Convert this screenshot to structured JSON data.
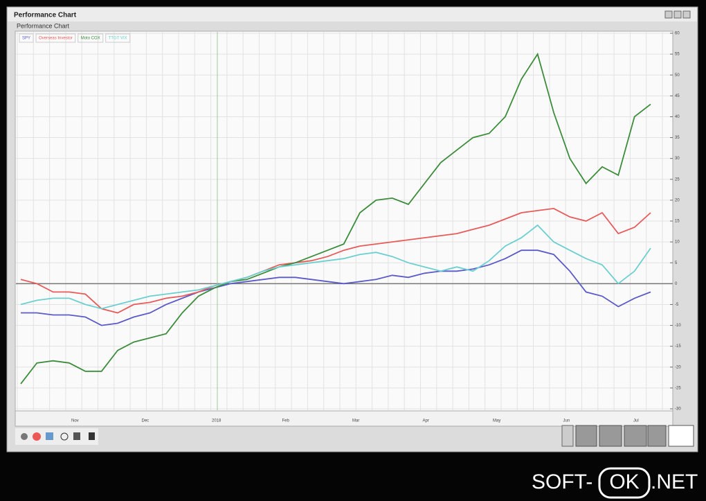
{
  "window": {
    "title": "Performance Chart"
  },
  "chart_data": {
    "type": "line",
    "title": "Performance Chart",
    "series": [
      {
        "name": "SPY",
        "color": "#5a5ac8",
        "values": [
          -7,
          -7,
          -7.5,
          -7.5,
          -8,
          -10,
          -9.5,
          -8,
          -7,
          -5,
          -3.5,
          -2,
          -1,
          0,
          0.5,
          1,
          1.5,
          1.5,
          1,
          0.5,
          0,
          0.5,
          1,
          2,
          1.5,
          2.5,
          3,
          3,
          3.5,
          4.5,
          6,
          8,
          8,
          7,
          3,
          -2,
          -3,
          -5.5,
          -3.5,
          -2
        ]
      },
      {
        "name": "Overseas Investor",
        "color": "#e85a5a",
        "values": [
          1,
          0,
          -2,
          -2,
          -2.5,
          -6,
          -7,
          -5,
          -4.5,
          -3.5,
          -3,
          -2,
          -0.5,
          0.5,
          1.5,
          3,
          4.5,
          5,
          5.5,
          6.5,
          8,
          9,
          9.5,
          10,
          10.5,
          11,
          11.5,
          12,
          13,
          14,
          15.5,
          17,
          17.5,
          18,
          16,
          15,
          17,
          12,
          13.5,
          17
        ]
      },
      {
        "name": "Moto COX",
        "color": "#3c8c3c",
        "values": [
          -24,
          -19,
          -18.5,
          -19,
          -21,
          -21,
          -16,
          -14,
          -13,
          -12,
          -7,
          -3,
          -1,
          0.5,
          1,
          2.5,
          4,
          5,
          6.5,
          8,
          9.5,
          17,
          20,
          20.5,
          19,
          24,
          29,
          32,
          35,
          36,
          40,
          49,
          55,
          41,
          30,
          24,
          28,
          26,
          40,
          43
        ]
      },
      {
        "name": "TTGT VIX",
        "color": "#6ccfcf",
        "values": [
          -5,
          -4,
          -3.5,
          -3.5,
          -5,
          -6,
          -5,
          -4,
          -3,
          -2.5,
          -2,
          -1.5,
          -0.5,
          0.5,
          1.5,
          3,
          4,
          4.5,
          5,
          5.5,
          6,
          7,
          7.5,
          6.5,
          5,
          4,
          3,
          4,
          3,
          5.5,
          9,
          11,
          14,
          10,
          8,
          6,
          4.5,
          0,
          3,
          8.5
        ]
      }
    ],
    "month_labels": [
      "Nov",
      "Dec",
      "2018",
      "Feb",
      "Mar",
      "Apr",
      "May",
      "Jun",
      "Jul"
    ],
    "ylim": [
      -30,
      60
    ],
    "yticks": [
      -30,
      -25,
      -20,
      -15,
      -10,
      -5,
      0,
      5,
      10,
      15,
      20,
      25,
      30,
      35,
      40,
      45,
      50,
      55,
      60
    ],
    "grid": true
  },
  "watermark": {
    "left": "SOFT-",
    "middle": "OK",
    "right": ".NET"
  }
}
